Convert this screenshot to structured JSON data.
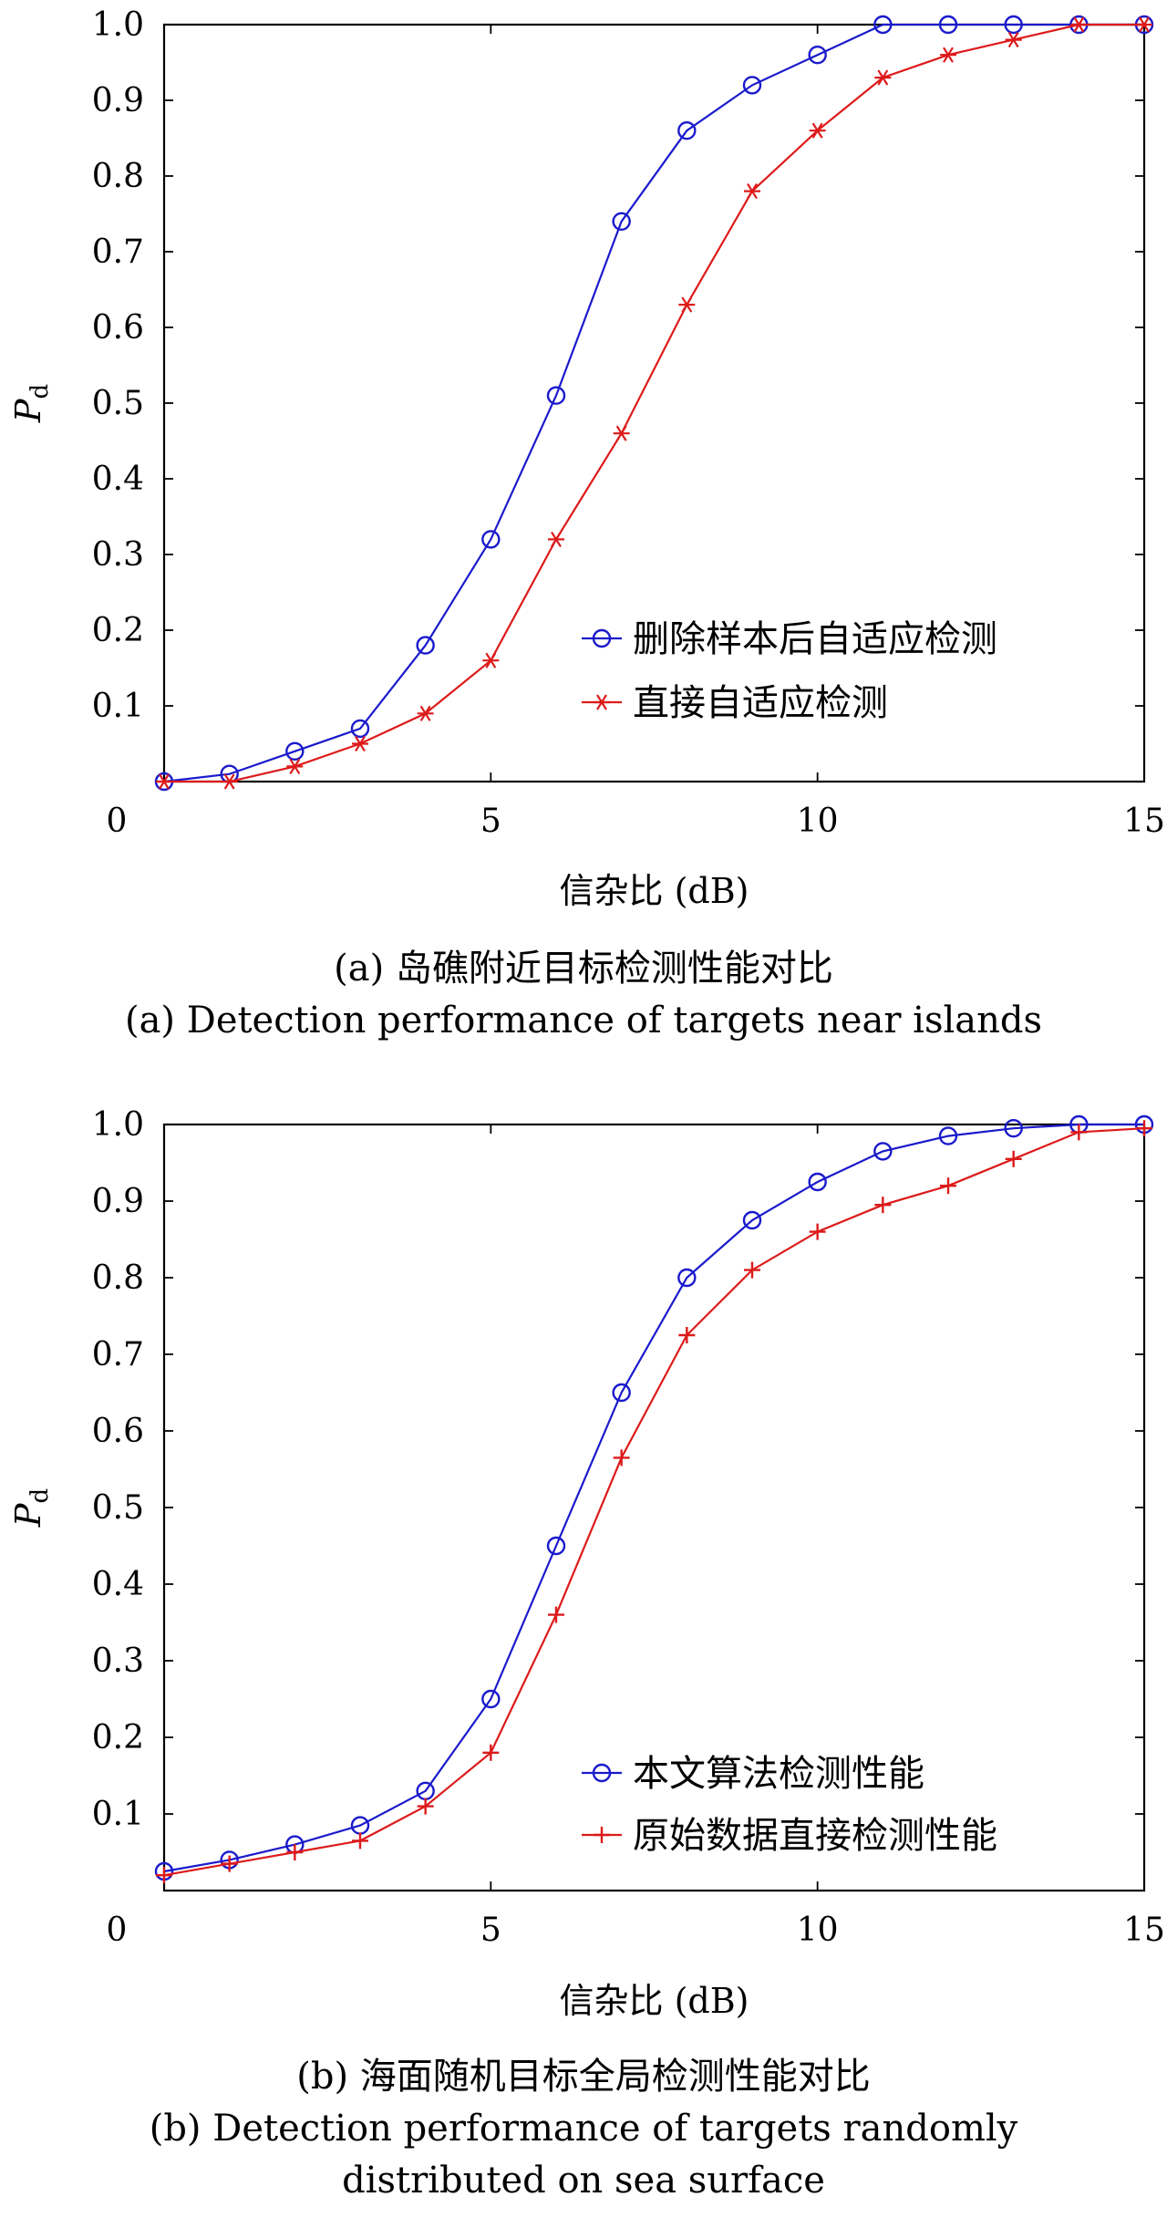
{
  "chart_data": [
    {
      "type": "line",
      "title": "",
      "caption_cn": "(a) 岛礁附近目标检测性能对比",
      "caption_en": "(a) Detection performance of targets near islands",
      "xlabel": "信杂比 (dB)",
      "ylabel": "P",
      "ylabel_sub": "d",
      "xlim": [
        0,
        15
      ],
      "ylim": [
        0,
        1.0
      ],
      "xticks": [
        "0",
        "5",
        "10",
        "15"
      ],
      "yticks": [
        "0.1",
        "0.2",
        "0.3",
        "0.4",
        "0.5",
        "0.6",
        "0.7",
        "0.8",
        "0.9",
        "1.0"
      ],
      "grid": false,
      "legend_position": "bottom-right",
      "x": [
        0,
        1,
        2,
        3,
        4,
        5,
        6,
        7,
        8,
        9,
        10,
        11,
        12,
        13,
        14,
        15
      ],
      "series": [
        {
          "name": "删除样本后自适应检测",
          "marker": "circle",
          "color": "#1a1acc",
          "values": [
            0.0,
            0.01,
            0.04,
            0.07,
            0.18,
            0.32,
            0.51,
            0.74,
            0.86,
            0.92,
            0.96,
            1.0,
            1.0,
            1.0,
            1.0,
            1.0
          ]
        },
        {
          "name": "直接自适应检测",
          "marker": "asterisk",
          "color": "#dd1a1a",
          "values": [
            0.0,
            0.0,
            0.02,
            0.05,
            0.09,
            0.16,
            0.32,
            0.46,
            0.63,
            0.78,
            0.86,
            0.93,
            0.96,
            0.98,
            1.0,
            1.0
          ]
        }
      ]
    },
    {
      "type": "line",
      "title": "",
      "caption_cn": "(b) 海面随机目标全局检测性能对比",
      "caption_en_1": "(b) Detection performance of targets randomly",
      "caption_en_2": "distributed on sea surface",
      "xlabel": "信杂比 (dB)",
      "ylabel": "P",
      "ylabel_sub": "d",
      "xlim": [
        0,
        15
      ],
      "ylim": [
        0,
        1.0
      ],
      "xticks": [
        "0",
        "5",
        "10",
        "15"
      ],
      "yticks": [
        "0.1",
        "0.2",
        "0.3",
        "0.4",
        "0.5",
        "0.6",
        "0.7",
        "0.8",
        "0.9",
        "1.0"
      ],
      "grid": false,
      "legend_position": "bottom-right",
      "x": [
        0,
        1,
        2,
        3,
        4,
        5,
        6,
        7,
        8,
        9,
        10,
        11,
        12,
        13,
        14,
        15
      ],
      "series": [
        {
          "name": "本文算法检测性能",
          "marker": "circle",
          "color": "#1a1acc",
          "values": [
            0.025,
            0.04,
            0.06,
            0.085,
            0.13,
            0.25,
            0.45,
            0.65,
            0.8,
            0.875,
            0.925,
            0.965,
            0.985,
            0.995,
            1.0,
            1.0
          ]
        },
        {
          "name": "原始数据直接检测性能",
          "marker": "plus",
          "color": "#dd1a1a",
          "values": [
            0.02,
            0.035,
            0.05,
            0.065,
            0.11,
            0.18,
            0.36,
            0.565,
            0.725,
            0.81,
            0.86,
            0.895,
            0.92,
            0.955,
            0.99,
            0.995
          ]
        }
      ]
    }
  ]
}
